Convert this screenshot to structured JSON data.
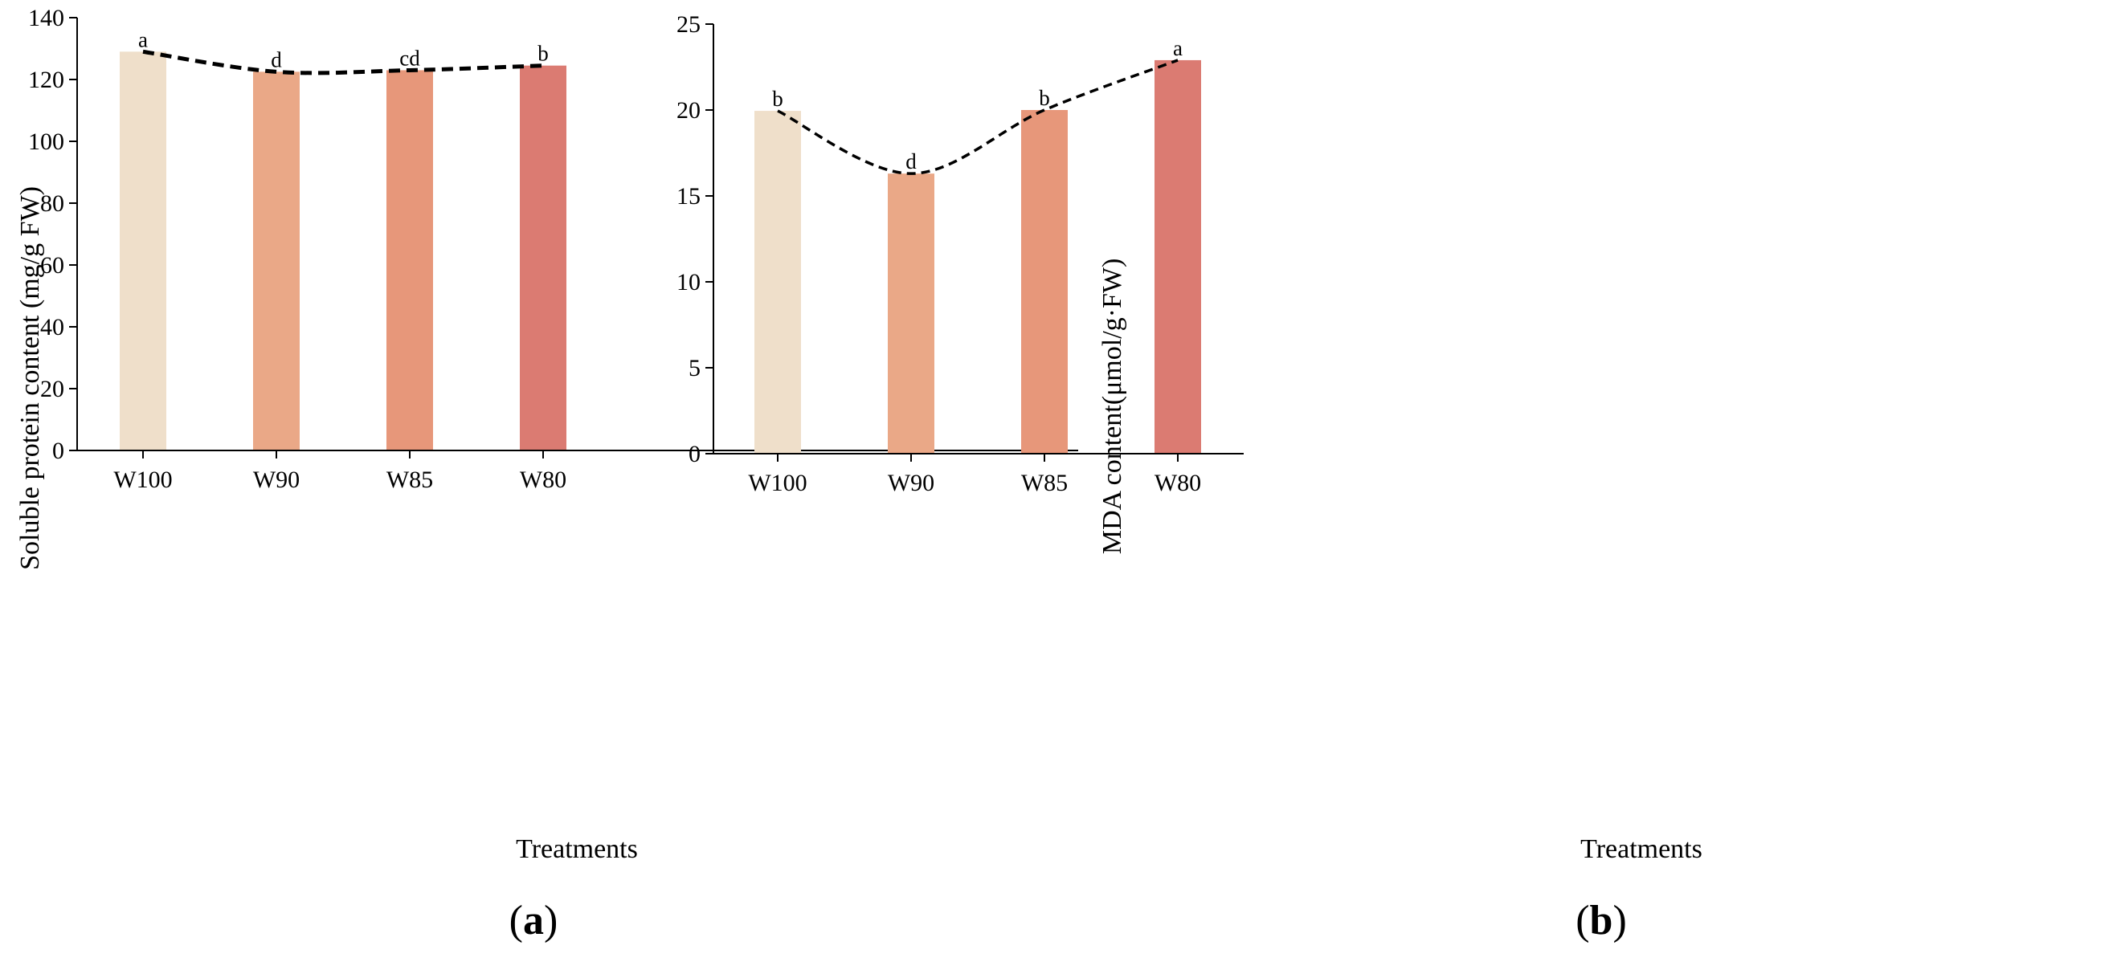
{
  "chart_data": [
    {
      "type": "bar",
      "panel_label": "a",
      "categories": [
        "W100",
        "W90",
        "W85",
        "W80"
      ],
      "values": [
        129,
        122.5,
        123,
        124.5
      ],
      "significance": [
        "a",
        "d",
        "cd",
        "b"
      ],
      "trend_line": "dashed",
      "xlabel": "Treatments",
      "ylabel": "Soluble protein content (mg/g FW)",
      "ylim": [
        0,
        140
      ],
      "yticks": [
        0,
        20,
        40,
        60,
        80,
        100,
        120,
        140
      ],
      "grid": false,
      "colors": [
        "#efdfca",
        "#eaa887",
        "#e7977a",
        "#db7b72"
      ]
    },
    {
      "type": "bar",
      "panel_label": "b",
      "categories": [
        "W100",
        "W90",
        "W85",
        "W80"
      ],
      "values": [
        19.95,
        16.3,
        20.0,
        22.9
      ],
      "significance": [
        "b",
        "d",
        "b",
        "a"
      ],
      "trend_line": "dashed",
      "xlabel": "Treatments",
      "ylabel": "MDA content(μmol/g·FW)",
      "ylim": [
        0,
        25
      ],
      "yticks": [
        0,
        5,
        10,
        15,
        20,
        25
      ],
      "grid": false,
      "colors": [
        "#efdfca",
        "#eaa887",
        "#e7977a",
        "#db7b72"
      ]
    }
  ]
}
